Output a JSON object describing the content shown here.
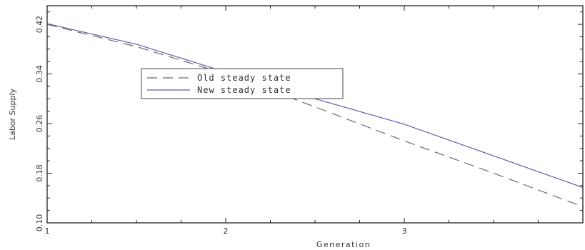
{
  "chart_data": {
    "type": "line",
    "title": "",
    "xlabel": "Generation",
    "ylabel": "Labor Supply",
    "xlim": [
      1,
      4
    ],
    "ylim": [
      0.1,
      0.45
    ],
    "xticks": [
      1,
      2,
      3
    ],
    "yticks": [
      0.1,
      0.18,
      0.26,
      0.34,
      0.42
    ],
    "xtick_labels": [
      "1",
      "2",
      "3"
    ],
    "ytick_labels": [
      "0.10",
      "0.18",
      "0.26",
      "0.34",
      "0.42"
    ],
    "legend_position": "upper-left-center",
    "grid": false,
    "series": [
      {
        "name": "Old steady state",
        "style": "dashed",
        "color": "#6a6a6a",
        "x": [
          1,
          1.5,
          2,
          2.5,
          3,
          3.5,
          4
        ],
        "y": [
          0.42,
          0.384,
          0.34,
          0.287,
          0.232,
          0.18,
          0.126
        ]
      },
      {
        "name": "New steady state",
        "style": "solid",
        "color": "#5a5fae",
        "x": [
          1,
          1.5,
          2,
          2.5,
          3,
          3.5,
          4
        ],
        "y": [
          0.421,
          0.388,
          0.343,
          0.3,
          0.259,
          0.208,
          0.157
        ]
      }
    ]
  }
}
